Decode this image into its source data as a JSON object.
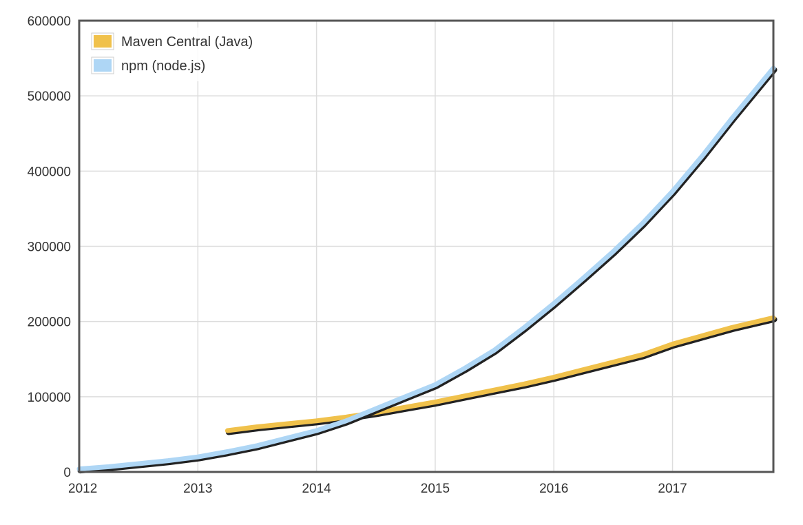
{
  "chart_data": {
    "type": "line",
    "title": "",
    "xlabel": "",
    "ylabel": "",
    "xlim": [
      2012,
      2017.85
    ],
    "ylim": [
      0,
      600000
    ],
    "x_ticks": [
      2012,
      2013,
      2014,
      2015,
      2016,
      2017
    ],
    "y_ticks": [
      0,
      100000,
      200000,
      300000,
      400000,
      500000,
      600000
    ],
    "grid": true,
    "legend_position": "top-left",
    "series": [
      {
        "name": "Maven Central (Java)",
        "color": "#f0c14b",
        "x": [
          2013.25,
          2013.5,
          2013.75,
          2014.0,
          2014.25,
          2014.5,
          2014.75,
          2015.0,
          2015.25,
          2015.5,
          2015.75,
          2016.0,
          2016.25,
          2016.5,
          2016.75,
          2017.0,
          2017.25,
          2017.5,
          2017.85
        ],
        "y": [
          55000,
          60000,
          64000,
          68000,
          73000,
          79000,
          86000,
          93000,
          101000,
          109000,
          117000,
          126000,
          136000,
          146000,
          156000,
          170000,
          181000,
          192000,
          205000
        ]
      },
      {
        "name": "npm (node.js)",
        "color": "#aed6f5",
        "x": [
          2012.0,
          2012.25,
          2012.5,
          2012.75,
          2013.0,
          2013.25,
          2013.5,
          2013.75,
          2014.0,
          2014.25,
          2014.5,
          2014.75,
          2015.0,
          2015.25,
          2015.5,
          2015.75,
          2016.0,
          2016.25,
          2016.5,
          2016.75,
          2017.0,
          2017.25,
          2017.5,
          2017.85
        ],
        "y": [
          4000,
          7000,
          11000,
          15000,
          20000,
          27000,
          35000,
          45000,
          55000,
          68000,
          84000,
          100000,
          116000,
          138000,
          162000,
          192000,
          224000,
          258000,
          293000,
          331000,
          373000,
          420000,
          470000,
          537000
        ]
      }
    ]
  }
}
